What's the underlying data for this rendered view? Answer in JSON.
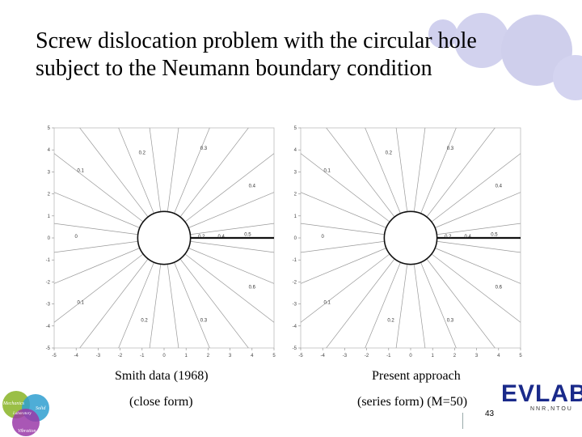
{
  "slide": {
    "title_line1": "Screw dislocation problem with the circular hole",
    "title_line2": "subject to the Neumann boundary condition",
    "left_caption_1": "Smith data (1968)",
    "left_caption_2": "(close form)",
    "right_caption_1": "Present approach",
    "right_caption_2": "(series form) (M=50)",
    "page_number": "43",
    "logo_right_text": "EVLAB",
    "logo_right_sub": "NNR,NTOU",
    "logo_left_words": [
      "Mechanics",
      "Solid",
      "Laboratory",
      "Vibration"
    ]
  },
  "colors": {
    "accent_circle": "#c8c8ea",
    "logo_blue": "#1a2a8a"
  },
  "chart_data": [
    {
      "type": "contour",
      "name": "",
      "xlim": [
        -5,
        5
      ],
      "ylim": [
        -5,
        5
      ],
      "x_ticks": [
        -5,
        -4,
        -3,
        -2,
        -1,
        0,
        1,
        2,
        3,
        4,
        5
      ],
      "y_ticks": [
        -5,
        -4,
        -3,
        -2,
        -1,
        0,
        1,
        2,
        3,
        4,
        5
      ],
      "hole": {
        "center": [
          0,
          0
        ],
        "radius": 1.2
      },
      "contour_labels": [
        {
          "text": "0.1",
          "x": -3.8,
          "y": 3.0
        },
        {
          "text": "0.2",
          "x": -1.0,
          "y": 3.8
        },
        {
          "text": "0.3",
          "x": 1.8,
          "y": 4.0
        },
        {
          "text": "0.4",
          "x": 4.0,
          "y": 2.3
        },
        {
          "text": "0.5",
          "x": 3.8,
          "y": 0.1
        },
        {
          "text": "0",
          "x": -4.0,
          "y": 0
        },
        {
          "text": "0.6",
          "x": 4.0,
          "y": -2.3
        },
        {
          "text": "0.1",
          "x": -3.8,
          "y": -3.0
        },
        {
          "text": "0.2",
          "x": -0.9,
          "y": -3.8
        },
        {
          "text": "0.3",
          "x": 1.8,
          "y": -3.8
        },
        {
          "text": "0.2",
          "x": 1.7,
          "y": 0
        },
        {
          "text": "0.4",
          "x": 2.6,
          "y": 0
        }
      ]
    },
    {
      "type": "contour",
      "name": "",
      "xlim": [
        -5,
        5
      ],
      "ylim": [
        -5,
        5
      ],
      "x_ticks": [
        -5,
        -4,
        -3,
        -2,
        -1,
        0,
        1,
        2,
        3,
        4,
        5
      ],
      "y_ticks": [
        -5,
        -4,
        -3,
        -2,
        -1,
        0,
        1,
        2,
        3,
        4,
        5
      ],
      "hole": {
        "center": [
          0,
          0
        ],
        "radius": 1.2
      },
      "contour_labels": [
        {
          "text": "0.1",
          "x": -3.8,
          "y": 3.0
        },
        {
          "text": "0.2",
          "x": -1.0,
          "y": 3.8
        },
        {
          "text": "0.3",
          "x": 1.8,
          "y": 4.0
        },
        {
          "text": "0.4",
          "x": 4.0,
          "y": 2.3
        },
        {
          "text": "0.5",
          "x": 3.8,
          "y": 0.1
        },
        {
          "text": "0",
          "x": -4.0,
          "y": 0
        },
        {
          "text": "0.6",
          "x": 4.0,
          "y": -2.3
        },
        {
          "text": "0.1",
          "x": -3.8,
          "y": -3.0
        },
        {
          "text": "0.2",
          "x": -0.9,
          "y": -3.8
        },
        {
          "text": "0.3",
          "x": 1.8,
          "y": -3.8
        },
        {
          "text": "0.2",
          "x": 1.7,
          "y": 0
        },
        {
          "text": "0.4",
          "x": 2.6,
          "y": 0
        }
      ]
    }
  ]
}
